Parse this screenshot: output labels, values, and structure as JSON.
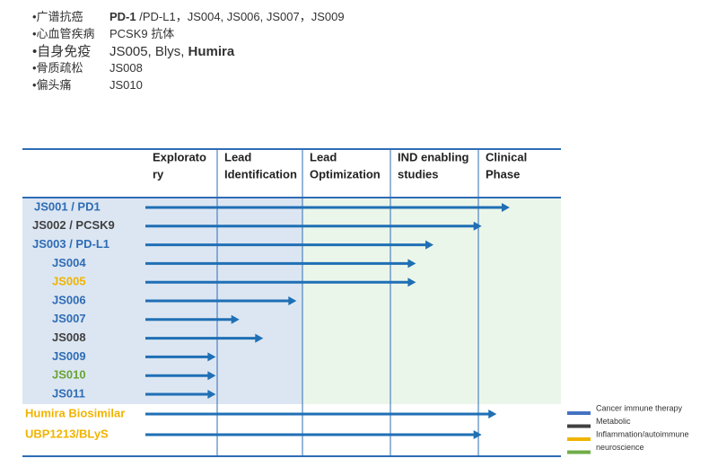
{
  "bullets": [
    {
      "parts": [
        {
          "text": "•广谱抗癌"
        },
        {
          "text": "PD-1",
          "bold": true
        },
        {
          "text": " /PD-L1，JS004, JS006, JS007，JS009"
        }
      ]
    },
    {
      "parts": [
        {
          "text": "•心血管疾病"
        },
        {
          "text": "PCSK9 抗体"
        }
      ]
    },
    {
      "parts": [
        {
          "text": "•自身免疫"
        },
        {
          "text": "JS005, Blys, "
        },
        {
          "text": "Humira",
          "bold": true
        }
      ],
      "large": true
    },
    {
      "parts": [
        {
          "text": "•骨质疏松"
        },
        {
          "text": "JS008"
        }
      ]
    },
    {
      "parts": [
        {
          "text": "•偏头痛"
        },
        {
          "text": "JS010"
        }
      ]
    }
  ],
  "pipeline": {
    "stages": [
      [
        "Explorato",
        "ry"
      ],
      [
        "Lead",
        "Identification"
      ],
      [
        "Lead",
        "Optimization"
      ],
      [
        "IND enabling",
        "studies"
      ],
      [
        "Clinical",
        "Phase"
      ]
    ],
    "rows": [
      {
        "label": "JS001 / PD1",
        "color": "#2e6cb5",
        "progress": 4.38
      },
      {
        "label": "JS002 / PCSK9",
        "color": "#404040",
        "progress": 4.04
      },
      {
        "label": "JS003 / PD-L1",
        "color": "#2e6cb5",
        "progress": 3.49
      },
      {
        "label": "JS004",
        "color": "#2e6cb5",
        "progress": 3.29
      },
      {
        "label": "JS005",
        "color": "#f0b400",
        "progress": 3.29
      },
      {
        "label": "JS006",
        "color": "#2e6cb5",
        "progress": 1.93
      },
      {
        "label": "JS007",
        "color": "#2e6cb5",
        "progress": 1.26
      },
      {
        "label": "JS008",
        "color": "#404040",
        "progress": 1.54
      },
      {
        "label": "JS009",
        "color": "#2e6cb5",
        "progress": 0.98
      },
      {
        "label": "JS010",
        "color": "#6aa334",
        "progress": 0.98
      },
      {
        "label": "JS011",
        "color": "#2e6cb5",
        "progress": 0.98
      },
      {
        "label": "Humira Biosimilar",
        "color": "#f0b400",
        "progress": 4.22
      },
      {
        "label": "UBP1213/BLyS",
        "color": "#f0b400",
        "progress": 4.04
      }
    ],
    "arrow_color": "#1f6fb5",
    "legend": [
      {
        "label": "Cancer immune therapy",
        "color": "#4472c4"
      },
      {
        "label": "Metabolic",
        "color": "#404040"
      },
      {
        "label": "Inflammation/autoimmune",
        "color": "#f0b400"
      },
      {
        "label": "neuroscience",
        "color": "#70ad47"
      }
    ]
  }
}
